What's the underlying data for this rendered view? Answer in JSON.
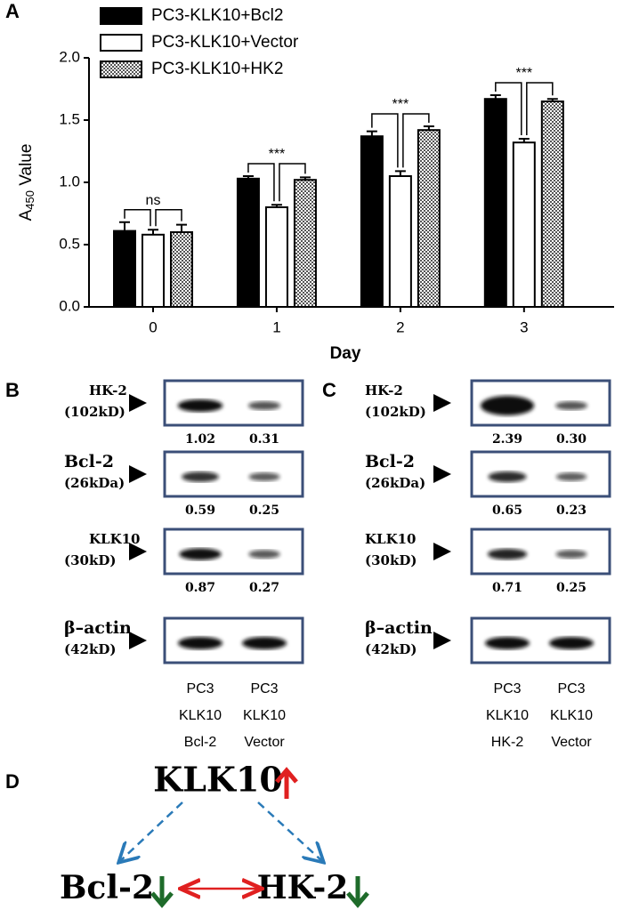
{
  "panels": {
    "A": "A",
    "B": "B",
    "C": "C",
    "D": "D"
  },
  "chart_data": {
    "type": "bar",
    "ylabel": {
      "main": "A",
      "sub": "450",
      "rest": " Value"
    },
    "xlabel": "Day",
    "categories": [
      "0",
      "1",
      "2",
      "3"
    ],
    "series": [
      {
        "name": "PC3-KLK10+Bcl2",
        "color": "#000000",
        "values": [
          0.61,
          1.03,
          1.37,
          1.67
        ],
        "errors": [
          0.07,
          0.02,
          0.04,
          0.03
        ]
      },
      {
        "name": "PC3-KLK10+Vector",
        "color": "#ffffff",
        "values": [
          0.58,
          0.8,
          1.05,
          1.32
        ],
        "errors": [
          0.04,
          0.02,
          0.04,
          0.03
        ]
      },
      {
        "name": "PC3-KLK10+HK2",
        "color": "#888888",
        "pattern": "checker",
        "values": [
          0.6,
          1.02,
          1.42,
          1.65
        ],
        "errors": [
          0.06,
          0.02,
          0.03,
          0.02
        ]
      }
    ],
    "significance": [
      "ns",
      "***",
      "***",
      "***"
    ],
    "ylim": [
      0,
      2.0
    ],
    "yticks": [
      {
        "value": 0,
        "label": "0.0"
      },
      0.5,
      {
        "value": 1,
        "label": "1.0"
      },
      1.5,
      {
        "value": 2,
        "label": "2.0"
      }
    ],
    "legend": "top"
  },
  "blots": [
    {
      "rows": [
        {
          "name": "HK-2",
          "size": "(102kD)",
          "quant": [
            "1.02",
            "0.31"
          ]
        },
        {
          "name": "Bcl-2",
          "size": "(26kDa)",
          "quant": [
            "0.59",
            "0.25"
          ]
        },
        {
          "name": "KLK10",
          "size": "(30kD)",
          "quant": [
            "0.87",
            "0.27"
          ]
        },
        {
          "name": "β–actin",
          "size": "(42kD)"
        }
      ],
      "lanes": [
        [
          "PC3",
          "KLK10",
          "Bcl-2"
        ],
        [
          "PC3",
          "KLK10",
          "Vector"
        ]
      ]
    },
    {
      "rows": [
        {
          "name": "HK-2",
          "size": "(102kD)",
          "quant": [
            "2.39",
            "0.30"
          ]
        },
        {
          "name": "Bcl-2",
          "size": "(26kDa)",
          "quant": [
            "0.65",
            "0.23"
          ]
        },
        {
          "name": "KLK10",
          "size": "(30kD)",
          "quant": [
            "0.71",
            "0.25"
          ]
        },
        {
          "name": "β–actin",
          "size": "(42kD)"
        }
      ],
      "lanes": [
        [
          "PC3",
          "KLK10",
          "HK-2"
        ],
        [
          "PC3",
          "KLK10",
          "Vector"
        ]
      ]
    }
  ],
  "diagram": {
    "top": "KLK10",
    "left": "Bcl-2",
    "right": "HK-2"
  }
}
